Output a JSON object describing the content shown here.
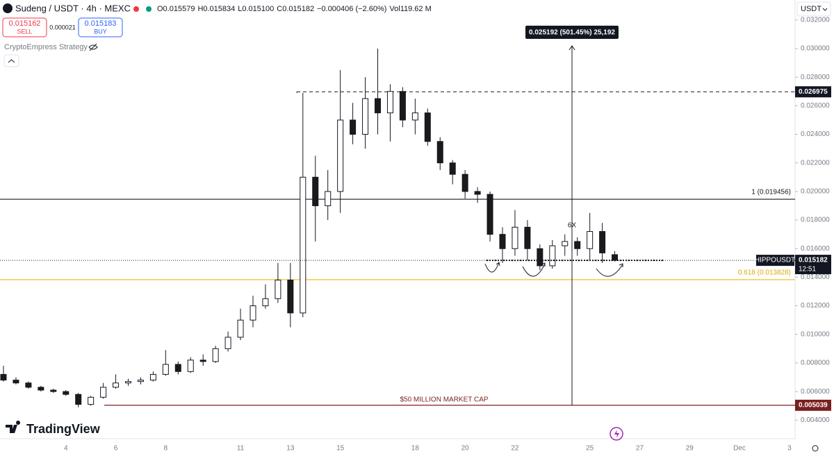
{
  "chart_data": {
    "type": "candlestick",
    "title": "Sudeng / USDT · 4h · MEXC",
    "stats": [
      "O0.015579",
      "H0.015834",
      "L0.015100",
      "C0.015182",
      "−0.000406 (−2.60%)",
      "Vol119.62 M"
    ],
    "trade": {
      "sell_price": "0.015162",
      "sell": "SELL",
      "spread": "0.000021",
      "buy_price": "0.015183",
      "buy": "BUY"
    },
    "indicator": "CryptoEmpress Strategy",
    "currency": "USDT",
    "watermark": "TradingView",
    "up_color": "#ffffff",
    "down_color": "#1a1a1a",
    "categories": [
      null,
      null,
      null,
      null,
      null,
      "4",
      null,
      null,
      null,
      "6",
      null,
      null,
      null,
      "8",
      null,
      null,
      null,
      null,
      null,
      "11",
      null,
      null,
      null,
      "13",
      null,
      null,
      null,
      "15",
      null,
      null,
      null,
      null,
      null,
      "18",
      null,
      null,
      null,
      "20",
      null,
      null,
      null,
      "22",
      null,
      null,
      null,
      null,
      null,
      "25",
      null,
      null,
      null,
      "27",
      null,
      null,
      null,
      "29",
      null,
      null,
      null,
      "Dec",
      null,
      null,
      null,
      "3"
    ],
    "open": [
      0.0072,
      0.0068,
      0.0066,
      0.0063,
      0.0061,
      0.006,
      0.0058,
      0.0051,
      0.0056,
      0.0063,
      0.0066,
      0.0067,
      0.0068,
      0.0072,
      0.0079,
      0.0074,
      0.0082,
      0.0081,
      0.009,
      0.0098,
      0.011,
      0.012,
      0.0125,
      0.0138,
      0.0115,
      0.021,
      0.019,
      0.02,
      0.025,
      0.024,
      0.0265,
      0.0255,
      0.027,
      0.025,
      0.0255,
      0.0235,
      0.022,
      0.0212,
      0.02,
      0.0198,
      0.017,
      0.016,
      0.0175,
      0.016,
      0.0148,
      0.0162,
      0.0165,
      0.016,
      0.0172,
      0.015579,
      null,
      null,
      null,
      null,
      null,
      null,
      null,
      null,
      null,
      null,
      null,
      null,
      null,
      null
    ],
    "high": [
      0.0078,
      0.007,
      0.0067,
      0.0064,
      0.0062,
      0.0061,
      0.0059,
      0.0057,
      0.0066,
      0.0072,
      0.0069,
      0.007,
      0.0074,
      0.0089,
      0.0081,
      0.0084,
      0.0086,
      0.0092,
      0.0102,
      0.0118,
      0.0127,
      0.0135,
      0.015,
      0.015,
      0.0269,
      0.0225,
      0.0215,
      0.0285,
      0.0262,
      0.028,
      0.03,
      0.0275,
      0.0273,
      0.0265,
      0.0258,
      0.0238,
      0.0222,
      0.0215,
      0.0203,
      0.02,
      0.0175,
      0.0187,
      0.018,
      0.0163,
      0.0166,
      0.017,
      0.0168,
      0.0185,
      0.0178,
      0.015834,
      null,
      null,
      null,
      null,
      null,
      null,
      null,
      null,
      null,
      null,
      null,
      null,
      null,
      null
    ],
    "low": [
      0.0067,
      0.0065,
      0.0062,
      0.006,
      0.0059,
      0.0057,
      0.0049,
      0.005,
      0.0055,
      0.0062,
      0.0064,
      0.0065,
      0.0067,
      0.0071,
      0.0072,
      0.0073,
      0.0078,
      0.008,
      0.0088,
      0.0096,
      0.0105,
      0.0118,
      0.0122,
      0.0105,
      0.0112,
      0.0165,
      0.018,
      0.0185,
      0.0233,
      0.023,
      0.024,
      0.0235,
      0.0245,
      0.024,
      0.0232,
      0.0215,
      0.0205,
      0.0195,
      0.0192,
      0.0165,
      0.015,
      0.0155,
      0.0152,
      0.0145,
      0.0146,
      0.0155,
      0.0155,
      0.0152,
      0.015,
      0.0151,
      null,
      null,
      null,
      null,
      null,
      null,
      null,
      null,
      null,
      null,
      null,
      null,
      null,
      null
    ],
    "close": [
      0.0068,
      0.0066,
      0.0063,
      0.0061,
      0.006,
      0.0058,
      0.0051,
      0.0056,
      0.0063,
      0.0066,
      0.0067,
      0.0068,
      0.0072,
      0.0079,
      0.0074,
      0.0082,
      0.0081,
      0.009,
      0.0098,
      0.011,
      0.012,
      0.0125,
      0.0138,
      0.0115,
      0.021,
      0.019,
      0.02,
      0.025,
      0.024,
      0.0265,
      0.0255,
      0.027,
      0.025,
      0.0255,
      0.0235,
      0.022,
      0.0212,
      0.02,
      0.0198,
      0.017,
      0.016,
      0.0175,
      0.016,
      0.0148,
      0.0162,
      0.0165,
      0.016,
      0.0172,
      0.0157,
      0.015182,
      null,
      null,
      null,
      null,
      null,
      null,
      null,
      null,
      null,
      null,
      null,
      null,
      null,
      null
    ],
    "ylim": [
      0.0028,
      0.0334
    ],
    "yticks": [
      {
        "value": 0.004,
        "label": "0.004000"
      },
      {
        "value": 0.006,
        "label": "0.006000"
      },
      {
        "value": 0.008,
        "label": "0.008000"
      },
      {
        "value": 0.01,
        "label": "0.010000"
      },
      {
        "value": 0.012,
        "label": "0.012000"
      },
      {
        "value": 0.014,
        "label": "0.014000"
      },
      {
        "value": 0.016,
        "label": "0.016000"
      },
      {
        "value": 0.018,
        "label": "0.018000"
      },
      {
        "value": 0.02,
        "label": "0.020000"
      },
      {
        "value": 0.022,
        "label": "0.022000"
      },
      {
        "value": 0.024,
        "label": "0.024000"
      },
      {
        "value": 0.026,
        "label": "0.026000"
      },
      {
        "value": 0.028,
        "label": "0.028000"
      },
      {
        "value": 0.03,
        "label": "0.030000"
      },
      {
        "value": 0.032,
        "label": "0.032000"
      }
    ],
    "levels": [
      {
        "value": 0.019456,
        "label": "1 (0.019456)",
        "color": "#131722"
      },
      {
        "value": 0.013828,
        "label": "0.618 (0.013828)",
        "color": "#f0b90b"
      }
    ],
    "price_tags": [
      {
        "value": 0.026975,
        "label": "0.026975",
        "color": "#131722"
      },
      {
        "value": 0.005039,
        "label": "0.005039",
        "color": "#7a1f1f"
      }
    ],
    "tag_note": "$50 MILLION MARKET CAP",
    "current": {
      "symbol": "HIPPOUSDT",
      "value": 0.015182,
      "label": "0.015182",
      "countdown": "12:51"
    },
    "measure": {
      "label": "0.025192 (501.45%) 25,192",
      "note": "6X"
    }
  }
}
